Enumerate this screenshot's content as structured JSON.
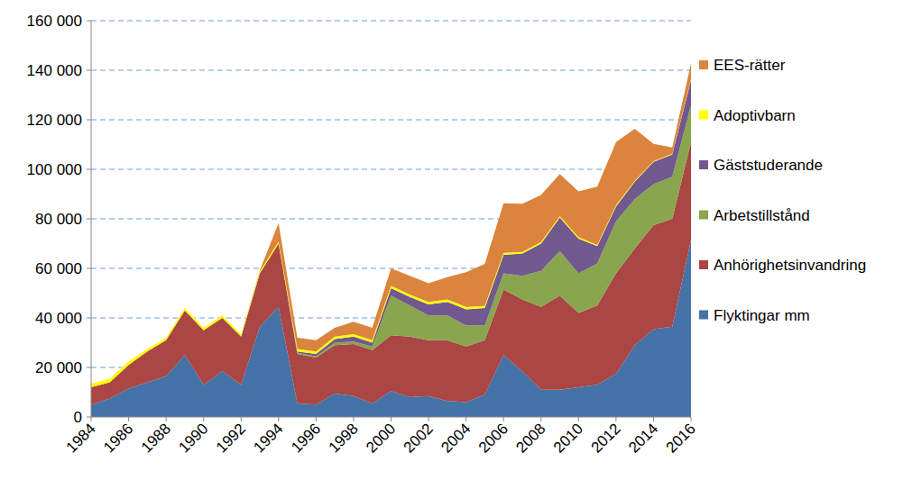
{
  "chart_data": {
    "type": "area",
    "stacked": true,
    "grid": true,
    "legend": "right",
    "x": [
      1984,
      1985,
      1986,
      1987,
      1988,
      1989,
      1990,
      1991,
      1992,
      1993,
      1994,
      1995,
      1996,
      1997,
      1998,
      1999,
      2000,
      2001,
      2002,
      2003,
      2004,
      2005,
      2006,
      2007,
      2008,
      2009,
      2010,
      2011,
      2012,
      2013,
      2014,
      2015,
      2016
    ],
    "xlim": [
      1984,
      2016
    ],
    "xticks": [
      1984,
      1986,
      1988,
      1990,
      1992,
      1994,
      1996,
      1998,
      2000,
      2002,
      2004,
      2006,
      2008,
      2010,
      2012,
      2014,
      2016
    ],
    "ylim": [
      0,
      160000
    ],
    "yticks": [
      {
        "value": 0,
        "label": "0"
      },
      {
        "value": 20000,
        "label": "20 000"
      },
      {
        "value": 40000,
        "label": "40 000"
      },
      {
        "value": 60000,
        "label": "60 000"
      },
      {
        "value": 80000,
        "label": "80 000"
      },
      {
        "value": 100000,
        "label": "100 000"
      },
      {
        "value": 120000,
        "label": "120 000"
      },
      {
        "value": 140000,
        "label": "140 000"
      },
      {
        "value": 160000,
        "label": "160 000"
      }
    ],
    "series": [
      {
        "name": "Flyktingar mm",
        "color": "#4572a7",
        "values": [
          5000,
          7500,
          11500,
          14000,
          16500,
          25000,
          13000,
          18500,
          13000,
          36500,
          44500,
          5500,
          5000,
          9500,
          8500,
          5500,
          10500,
          8000,
          8500,
          6500,
          6000,
          9000,
          25000,
          18500,
          11000,
          11000,
          12000,
          13000,
          17500,
          29000,
          35500,
          36500,
          71500
        ]
      },
      {
        "name": "Anhörighetsinvandring",
        "color": "#aa4643",
        "values": [
          7000,
          6500,
          9500,
          12500,
          14500,
          18000,
          22000,
          21500,
          19500,
          21500,
          25500,
          20000,
          19000,
          19500,
          21000,
          21500,
          22500,
          24500,
          22500,
          24500,
          22500,
          22000,
          26500,
          29000,
          33500,
          38000,
          30000,
          32000,
          40500,
          39000,
          42000,
          43500,
          39500
        ]
      },
      {
        "name": "Arbetstillstånd",
        "color": "#89a54e",
        "values": [
          0,
          0,
          0,
          0,
          0,
          0,
          0,
          0,
          0,
          0,
          0,
          500,
          500,
          1000,
          1000,
          1500,
          16000,
          12500,
          10000,
          10000,
          8500,
          6000,
          6500,
          9500,
          14500,
          18000,
          16000,
          17000,
          21000,
          20000,
          16500,
          17000,
          15000
        ]
      },
      {
        "name": "Gäststuderande",
        "color": "#71588f",
        "values": [
          0,
          0,
          0,
          0,
          0,
          0,
          0,
          0,
          0,
          0,
          0,
          500,
          1000,
          1500,
          2000,
          1500,
          3000,
          3500,
          4500,
          5500,
          6500,
          7000,
          7500,
          9000,
          11000,
          13500,
          14000,
          7000,
          6000,
          7000,
          9000,
          9000,
          10000
        ]
      },
      {
        "name": "Adoptivbarn",
        "color": "#ffff00",
        "values": [
          1500,
          1500,
          1500,
          1000,
          1000,
          1000,
          1000,
          1000,
          800,
          800,
          800,
          1000,
          1000,
          1000,
          1000,
          1000,
          1000,
          1000,
          1000,
          1000,
          1000,
          800,
          800,
          600,
          600,
          600,
          600,
          500,
          500,
          400,
          300,
          300,
          300
        ]
      },
      {
        "name": "EES-rätter",
        "color": "#db843d",
        "values": [
          0,
          0,
          0,
          0,
          0,
          0,
          0,
          0,
          0,
          500,
          7500,
          4500,
          4500,
          3500,
          5000,
          5000,
          7000,
          7500,
          7500,
          9000,
          14000,
          17000,
          20000,
          19500,
          19000,
          17000,
          18500,
          23500,
          25500,
          21000,
          7000,
          2500,
          6500
        ]
      }
    ]
  }
}
